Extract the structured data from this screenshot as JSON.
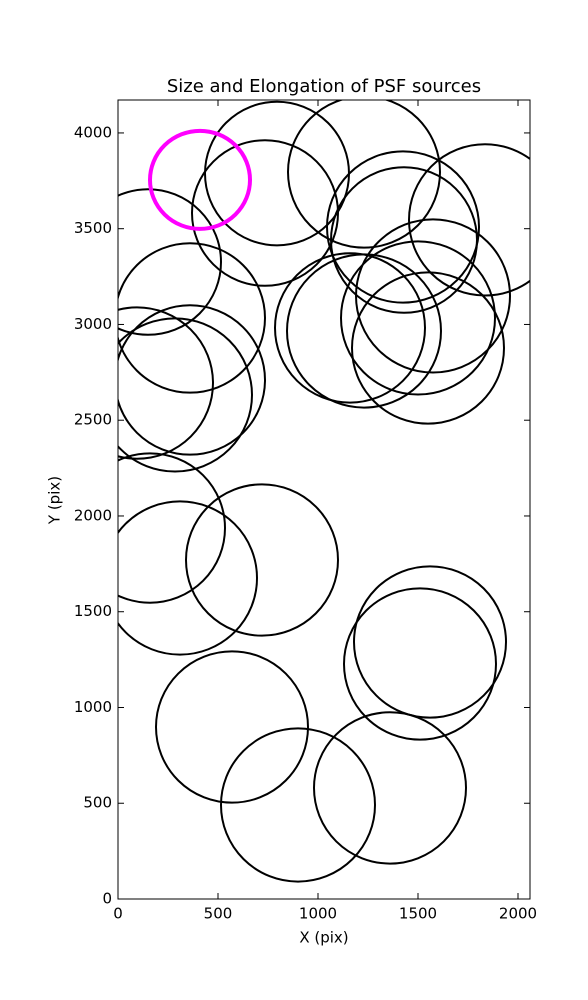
{
  "chart_data": {
    "type": "ellipse",
    "title": "Size and Elongation of PSF sources",
    "xlabel": "X (pix)",
    "ylabel": "Y (pix)",
    "xlim": [
      0,
      2060
    ],
    "ylim": [
      0,
      4172
    ],
    "xticks": [
      0,
      500,
      1000,
      1500,
      2000
    ],
    "yticks": [
      0,
      500,
      1000,
      1500,
      2000,
      2500,
      3000,
      3500,
      4000
    ],
    "color": "#000000",
    "x": [
      795,
      735,
      1230,
      1425,
      1430,
      1835,
      150,
      360,
      1160,
      1230,
      1575,
      1500,
      1550,
      95,
      360,
      285,
      160,
      310,
      720,
      1560,
      1510,
      570,
      900,
      1360
    ],
    "y": [
      3788,
      3582,
      3796,
      3509,
      3441,
      3546,
      3326,
      3034,
      2982,
      2966,
      3149,
      3034,
      2877,
      2694,
      2710,
      2632,
      1937,
      1676,
      1770,
      1342,
      1227,
      898,
      491,
      580
    ],
    "width": [
      720,
      730,
      760,
      760,
      730,
      760,
      730,
      750,
      750,
      770,
      770,
      770,
      760,
      760,
      750,
      770,
      750,
      770,
      760,
      760,
      760,
      760,
      770,
      760
    ],
    "height": [
      750,
      760,
      790,
      790,
      760,
      790,
      760,
      780,
      780,
      800,
      800,
      800,
      790,
      790,
      780,
      800,
      780,
      800,
      790,
      790,
      790,
      790,
      800,
      790
    ],
    "highlight": {
      "x": 410,
      "y": 3755,
      "width": 500,
      "height": 512,
      "color": "#ff00ff"
    }
  }
}
